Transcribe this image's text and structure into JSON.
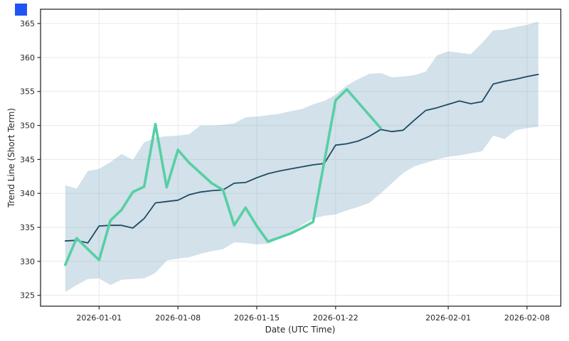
{
  "figure": {
    "background": "#ffffff",
    "corner_marker_color": "#2054F2"
  },
  "chart_data": {
    "type": "line",
    "title": "",
    "xlabel": "Date (UTC Time)",
    "ylabel": "Trend Line (Short Term)",
    "grid": true,
    "legend_position": "none",
    "grid_color": "#E9E9E9",
    "axis_color": "#2B2B2B",
    "tick_label_color": "#262626",
    "day_zero_date": "2026-01-01",
    "x_tick_labels": [
      "2026-01-01",
      "2026-01-08",
      "2026-01-15",
      "2026-01-22",
      "2026-02-01",
      "2026-02-08"
    ],
    "x_tick_days": [
      0,
      7,
      14,
      21,
      31,
      38
    ],
    "y_ticks": [
      325,
      330,
      335,
      340,
      345,
      350,
      355,
      360,
      365
    ],
    "xlim_days": [
      -5.2,
      41.0
    ],
    "ylim": [
      323.4,
      367.1
    ],
    "series": [
      {
        "name": "actual",
        "color": "#57CFA4",
        "line_width": 3.6,
        "start_date": "2025-12-29",
        "end_date": "2026-01-26",
        "days": [
          -3,
          -2,
          -1,
          0,
          1,
          2,
          3,
          4,
          5,
          6,
          7,
          8,
          9,
          10,
          11,
          12,
          13,
          14,
          15,
          16,
          17,
          18,
          19,
          20,
          21,
          22,
          23,
          24,
          25
        ],
        "values": [
          329.5,
          333.4,
          331.8,
          330.2,
          336.0,
          337.6,
          340.2,
          341.0,
          350.2,
          340.9,
          346.4,
          344.5,
          343.0,
          341.5,
          340.5,
          335.3,
          337.9,
          335.2,
          332.9,
          333.5,
          334.1,
          334.9,
          335.8,
          344.7,
          353.7,
          355.3,
          353.4,
          351.5,
          349.6
        ]
      },
      {
        "name": "forecast-trend",
        "color": "#1E4A63",
        "line_width": 1.8,
        "start_date": "2025-12-29",
        "end_date": "2026-02-09",
        "days": [
          -3,
          -2,
          -1,
          0,
          1,
          2,
          3,
          4,
          5,
          6,
          7,
          8,
          9,
          10,
          11,
          12,
          13,
          14,
          15,
          16,
          17,
          18,
          19,
          20,
          21,
          22,
          23,
          24,
          25,
          26,
          27,
          28,
          29,
          30,
          31,
          32,
          33,
          34,
          35,
          36,
          37,
          38,
          39
        ],
        "values": [
          333.0,
          333.1,
          332.7,
          335.2,
          335.3,
          335.3,
          334.9,
          336.3,
          338.6,
          338.8,
          339.0,
          339.8,
          340.2,
          340.4,
          340.5,
          341.5,
          341.6,
          342.3,
          342.9,
          343.3,
          343.6,
          343.9,
          344.2,
          344.4,
          347.1,
          347.3,
          347.7,
          348.4,
          349.4,
          349.1,
          349.3,
          350.8,
          352.2,
          352.6,
          353.1,
          353.6,
          353.2,
          353.5,
          356.1,
          356.5,
          356.8,
          357.2,
          357.5
        ]
      }
    ],
    "band": {
      "name": "confidence-band",
      "fill": "#7FA8C3",
      "opacity": 0.35,
      "start_date": "2025-12-29",
      "end_date": "2026-02-09",
      "days": [
        -3,
        -2,
        -1,
        0,
        1,
        2,
        3,
        4,
        5,
        6,
        7,
        8,
        9,
        10,
        11,
        12,
        13,
        14,
        15,
        16,
        17,
        18,
        19,
        20,
        21,
        22,
        23,
        24,
        25,
        26,
        27,
        28,
        29,
        30,
        31,
        32,
        33,
        34,
        35,
        36,
        37,
        38,
        39
      ],
      "upper": [
        341.2,
        340.7,
        343.3,
        343.6,
        344.6,
        345.8,
        344.9,
        347.5,
        348.2,
        348.4,
        348.5,
        348.7,
        350.0,
        350.0,
        350.1,
        350.3,
        351.2,
        351.3,
        351.5,
        351.7,
        352.1,
        352.4,
        353.1,
        353.6,
        354.5,
        355.9,
        356.8,
        357.6,
        357.7,
        357.1,
        357.2,
        357.4,
        357.9,
        360.3,
        360.9,
        360.7,
        360.5,
        362.1,
        364.0,
        364.1,
        364.5,
        364.8,
        365.3
      ],
      "lower": [
        325.5,
        326.5,
        327.4,
        327.5,
        326.5,
        327.3,
        327.4,
        327.5,
        328.3,
        330.1,
        330.4,
        330.6,
        331.1,
        331.5,
        331.8,
        332.8,
        332.7,
        332.5,
        332.6,
        333.3,
        334.2,
        335.3,
        336.3,
        336.7,
        336.9,
        337.5,
        338.0,
        338.6,
        340.0,
        341.5,
        343.0,
        344.0,
        344.5,
        345.0,
        345.4,
        345.6,
        345.9,
        346.2,
        348.5,
        348.0,
        349.3,
        349.6,
        349.8
      ]
    }
  }
}
